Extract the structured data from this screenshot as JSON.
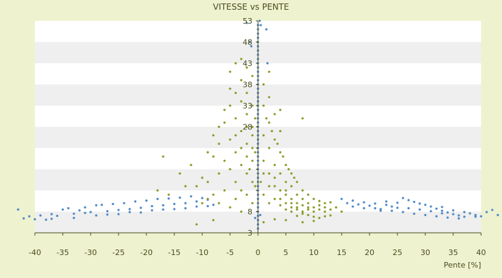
{
  "chart_data": {
    "type": "scatter",
    "title": "VITESSE vs PENTE",
    "xlabel": "Pente [%]",
    "ylabel": "",
    "xlim": [
      -40,
      40
    ],
    "ylim": [
      3,
      53
    ],
    "x_ticks": [
      -40,
      -35,
      -30,
      -25,
      -20,
      -15,
      -10,
      -5,
      0,
      5,
      10,
      15,
      20,
      25,
      30,
      35,
      40
    ],
    "y_ticks": [
      3,
      8,
      13,
      18,
      23,
      28,
      33,
      38,
      43,
      48,
      53
    ],
    "y_tick_labels": [
      "3",
      "8",
      "",
      "",
      "",
      "28",
      "33",
      "38",
      "43",
      "48",
      "53"
    ],
    "grid": "horizontal bands",
    "legend": "none",
    "colors": {
      "background": "#eef2cf",
      "plot_band_light": "#ffffff",
      "plot_band_dark": "#efefef",
      "series_blue": "#4a86c8",
      "series_green": "#8a9a24",
      "axis": "#4b4b1e",
      "text": "#4b4b1e"
    },
    "series": [
      {
        "color": "#4a86c8",
        "points": [
          [
            -43,
            8.5
          ],
          [
            -42,
            6.4
          ],
          [
            -41,
            6.9
          ],
          [
            -40,
            6.2
          ],
          [
            -39,
            7.1
          ],
          [
            -38,
            6.1
          ],
          [
            -36,
            7
          ],
          [
            -35,
            8.5
          ],
          [
            -34,
            8.8
          ],
          [
            -33,
            7.5
          ],
          [
            -32,
            8.3
          ],
          [
            -31,
            9
          ],
          [
            -30,
            7.9
          ],
          [
            -29,
            9.5
          ],
          [
            -28,
            9.6
          ],
          [
            -27,
            8.1
          ],
          [
            -26,
            9.8
          ],
          [
            -25,
            8.4
          ],
          [
            -24,
            10
          ],
          [
            -23,
            8.6
          ],
          [
            -22,
            10.4
          ],
          [
            -21,
            8.9
          ],
          [
            -20,
            10.6
          ],
          [
            -19,
            9.3
          ],
          [
            -18,
            11
          ],
          [
            -17,
            9.5
          ],
          [
            -16,
            11.1
          ],
          [
            -15,
            9.8
          ],
          [
            -14,
            11.3
          ],
          [
            -13,
            10
          ],
          [
            -12,
            11.6
          ],
          [
            -11,
            10.4
          ],
          [
            -10,
            11.2
          ],
          [
            -9,
            10.8
          ],
          [
            -8,
            9.6
          ],
          [
            -37,
            6.3
          ],
          [
            -33,
            6.5
          ],
          [
            -29,
            7.1
          ],
          [
            -25,
            7.4
          ],
          [
            -21,
            7.8
          ],
          [
            -17,
            8.5
          ],
          [
            -13,
            8.8
          ],
          [
            -9,
            9.3
          ],
          [
            -31,
            7.7
          ],
          [
            -27,
            7.3
          ],
          [
            -23,
            7.9
          ],
          [
            -19,
            8.3
          ],
          [
            -15,
            8.6
          ],
          [
            -11,
            9.2
          ],
          [
            -37,
            7.4
          ],
          [
            0,
            4
          ],
          [
            0,
            5
          ],
          [
            0,
            6
          ],
          [
            0,
            7
          ],
          [
            0,
            8
          ],
          [
            0,
            9
          ],
          [
            0,
            10
          ],
          [
            0,
            11
          ],
          [
            0,
            12
          ],
          [
            0,
            13
          ],
          [
            0,
            14
          ],
          [
            0,
            15
          ],
          [
            0,
            16
          ],
          [
            0,
            17
          ],
          [
            0,
            18
          ],
          [
            0,
            19
          ],
          [
            0,
            20
          ],
          [
            0,
            21
          ],
          [
            0,
            22
          ],
          [
            0,
            23
          ],
          [
            0,
            24
          ],
          [
            0,
            25
          ],
          [
            0,
            26
          ],
          [
            0,
            27
          ],
          [
            0,
            28
          ],
          [
            0,
            29
          ],
          [
            0,
            30
          ],
          [
            0,
            31
          ],
          [
            0,
            32
          ],
          [
            0,
            33
          ],
          [
            0,
            34
          ],
          [
            0,
            35
          ],
          [
            0,
            36
          ],
          [
            0,
            37
          ],
          [
            0,
            38
          ],
          [
            0,
            39
          ],
          [
            0,
            40
          ],
          [
            0,
            41
          ],
          [
            0,
            42
          ],
          [
            0,
            43
          ],
          [
            0,
            44
          ],
          [
            0,
            45
          ],
          [
            0,
            46
          ],
          [
            0,
            47
          ],
          [
            0,
            48
          ],
          [
            0,
            49
          ],
          [
            0,
            50
          ],
          [
            0,
            51
          ],
          [
            0,
            52
          ],
          [
            0.3,
            53
          ],
          [
            -1.5,
            48
          ],
          [
            1.5,
            51
          ],
          [
            1.7,
            43
          ],
          [
            -2,
            52.5
          ],
          [
            -1.2,
            47
          ],
          [
            0.5,
            52
          ],
          [
            -0.5,
            6.5
          ],
          [
            0.4,
            7.2
          ],
          [
            15,
            11
          ],
          [
            16,
            10
          ],
          [
            17,
            10.6
          ],
          [
            18,
            9.7
          ],
          [
            19,
            10.2
          ],
          [
            20,
            9.4
          ],
          [
            21,
            8.8
          ],
          [
            22,
            8.2
          ],
          [
            23,
            9.6
          ],
          [
            24,
            9.2
          ],
          [
            25,
            8.9
          ],
          [
            26,
            11.2
          ],
          [
            27,
            10.7
          ],
          [
            28,
            10.3
          ],
          [
            29,
            9.9
          ],
          [
            30,
            9.6
          ],
          [
            31,
            9.2
          ],
          [
            32,
            8.7
          ],
          [
            33,
            8.2
          ],
          [
            34,
            7.8
          ],
          [
            35,
            7.4
          ],
          [
            36,
            7.1
          ],
          [
            37,
            6.8
          ],
          [
            38,
            7.6
          ],
          [
            39,
            7.2
          ],
          [
            40,
            6.9
          ],
          [
            41,
            7.9
          ],
          [
            42,
            8.4
          ],
          [
            43,
            7.2
          ],
          [
            22,
            8.6
          ],
          [
            24,
            8.2
          ],
          [
            26,
            7.9
          ],
          [
            28,
            7.5
          ],
          [
            30,
            7.2
          ],
          [
            32,
            6.9
          ],
          [
            34,
            6.6
          ],
          [
            36,
            6.4
          ],
          [
            27,
            8.8
          ],
          [
            29,
            8.5
          ],
          [
            31,
            8.1
          ],
          [
            33,
            7.6
          ],
          [
            35,
            8.3
          ],
          [
            37,
            7.9
          ],
          [
            39,
            6.8
          ],
          [
            25,
            10.1
          ],
          [
            23,
            10.4
          ],
          [
            21,
            9.9
          ],
          [
            19,
            8.8
          ],
          [
            17,
            9.2
          ],
          [
            33,
            9.1
          ]
        ]
      },
      {
        "color": "#8a9a24",
        "points": [
          [
            -11,
            14
          ],
          [
            -10,
            16
          ],
          [
            -9,
            15
          ],
          [
            -8,
            21
          ],
          [
            -8,
            12
          ],
          [
            -7,
            17
          ],
          [
            -7,
            24
          ],
          [
            -6,
            20
          ],
          [
            -6,
            13
          ],
          [
            -6,
            29
          ],
          [
            -5,
            18
          ],
          [
            -5,
            25
          ],
          [
            -5,
            33
          ],
          [
            -5,
            41
          ],
          [
            -4,
            22
          ],
          [
            -4,
            15
          ],
          [
            -4,
            30
          ],
          [
            -4,
            36
          ],
          [
            -4,
            11
          ],
          [
            -3,
            19
          ],
          [
            -3,
            27
          ],
          [
            -3,
            34
          ],
          [
            -3,
            39
          ],
          [
            -3,
            13
          ],
          [
            -2,
            17
          ],
          [
            -2,
            24
          ],
          [
            -2,
            31
          ],
          [
            -2,
            36
          ],
          [
            -2,
            12
          ],
          [
            -2,
            21
          ],
          [
            -1,
            15
          ],
          [
            -1,
            20
          ],
          [
            -1,
            26
          ],
          [
            -1,
            33
          ],
          [
            -1,
            10
          ],
          [
            -1,
            28
          ],
          [
            -1.5,
            18
          ],
          [
            -0.5,
            22
          ],
          [
            -0.5,
            14
          ],
          [
            -0.5,
            30
          ],
          [
            -14,
            17
          ],
          [
            -13,
            14
          ],
          [
            -12,
            19
          ],
          [
            -17,
            21
          ],
          [
            -18,
            13
          ],
          [
            -16,
            12
          ],
          [
            -9,
            22
          ],
          [
            -8,
            26
          ],
          [
            -7,
            28
          ],
          [
            -6,
            32
          ],
          [
            -5,
            37
          ],
          [
            -4,
            26
          ],
          [
            -3,
            23
          ],
          [
            -2,
            28
          ],
          [
            -1,
            23
          ],
          [
            -10,
            10
          ],
          [
            -9,
            11
          ],
          [
            -7,
            10
          ],
          [
            -5,
            9
          ],
          [
            -3,
            8
          ],
          [
            0.5,
            15
          ],
          [
            1,
            20
          ],
          [
            1,
            26
          ],
          [
            1,
            33
          ],
          [
            1,
            12
          ],
          [
            2,
            17
          ],
          [
            2,
            23
          ],
          [
            2,
            29
          ],
          [
            2,
            10
          ],
          [
            2,
            35
          ],
          [
            3,
            14
          ],
          [
            3,
            19
          ],
          [
            3,
            25
          ],
          [
            3,
            11
          ],
          [
            3,
            31
          ],
          [
            4,
            13
          ],
          [
            4,
            17
          ],
          [
            4,
            22
          ],
          [
            4,
            9.5
          ],
          [
            4,
            27
          ],
          [
            5,
            12
          ],
          [
            5,
            15
          ],
          [
            5,
            10
          ],
          [
            5,
            19
          ],
          [
            5,
            8.5
          ],
          [
            6,
            11
          ],
          [
            6,
            9
          ],
          [
            6,
            14
          ],
          [
            6,
            8
          ],
          [
            7,
            10
          ],
          [
            7,
            12
          ],
          [
            7,
            8.5
          ],
          [
            7,
            9
          ],
          [
            8,
            9.5
          ],
          [
            8,
            11
          ],
          [
            8,
            8
          ],
          [
            9,
            9
          ],
          [
            9,
            10
          ],
          [
            9,
            8.5
          ],
          [
            10,
            9
          ],
          [
            10,
            8
          ],
          [
            11,
            8.5
          ],
          [
            11,
            9.5
          ],
          [
            12,
            8
          ],
          [
            12,
            9
          ],
          [
            13,
            8.5
          ],
          [
            14,
            9
          ],
          [
            15,
            8
          ],
          [
            6,
            17
          ],
          [
            7,
            15
          ],
          [
            8,
            13
          ],
          [
            9,
            12
          ],
          [
            10,
            11
          ],
          [
            11,
            10.5
          ],
          [
            12,
            10
          ],
          [
            13,
            10.2
          ],
          [
            1.5,
            30
          ],
          [
            2.5,
            27
          ],
          [
            3.5,
            24
          ],
          [
            4.5,
            21
          ],
          [
            5.5,
            18
          ],
          [
            6.5,
            16
          ],
          [
            1,
            17
          ],
          [
            2,
            14
          ],
          [
            3,
            16
          ],
          [
            4,
            11
          ],
          [
            5,
            13
          ],
          [
            6,
            10
          ],
          [
            7,
            7
          ],
          [
            8,
            7.5
          ],
          [
            9,
            7.2
          ],
          [
            10,
            6.8
          ],
          [
            11,
            6.5
          ],
          [
            12,
            6.9
          ],
          [
            13,
            7.1
          ],
          [
            -11,
            5
          ],
          [
            -8,
            6
          ],
          [
            1,
            5.5
          ],
          [
            3,
            6.2
          ],
          [
            5,
            6
          ],
          [
            8,
            5.5
          ],
          [
            10,
            5.8
          ],
          [
            -1,
            40
          ],
          [
            -2,
            42
          ],
          [
            1,
            38
          ],
          [
            -4,
            43
          ],
          [
            -3,
            44
          ],
          [
            2,
            41
          ],
          [
            4,
            32
          ],
          [
            8,
            30
          ]
        ]
      }
    ]
  }
}
